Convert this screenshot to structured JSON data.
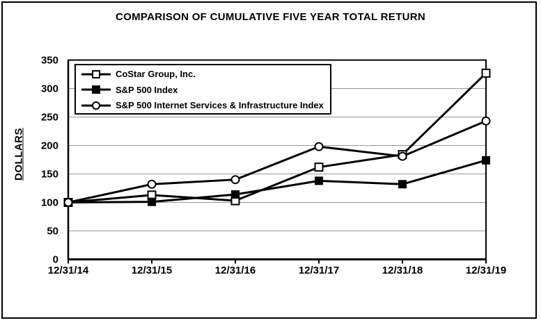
{
  "chart_data": {
    "type": "line",
    "title": "COMPARISON OF CUMULATIVE FIVE YEAR TOTAL RETURN",
    "ylabel": "DOLLARS",
    "xlabel": "",
    "x_tick_labels": [
      "12/31/14",
      "12/31/15",
      "12/31/16",
      "12/31/17",
      "12/31/18",
      "12/31/19"
    ],
    "y_ticks": [
      0,
      50,
      100,
      150,
      200,
      250,
      300,
      350
    ],
    "ylim": [
      0,
      350
    ],
    "grid": "horizontal-only",
    "legend_position": "inside-top-left",
    "series": [
      {
        "name": "CoStar Group, Inc.",
        "marker": "open-square",
        "color": "#000000",
        "values": [
          100,
          113,
          103,
          162,
          184,
          327
        ]
      },
      {
        "name": "S&P 500 Index",
        "marker": "filled-square",
        "color": "#000000",
        "values": [
          100,
          101,
          114,
          138,
          132,
          174
        ]
      },
      {
        "name": "S&P 500 Internet Services & Infrastructure Index",
        "marker": "open-circle",
        "color": "#000000",
        "values": [
          100,
          132,
          140,
          198,
          181,
          243
        ]
      }
    ]
  },
  "colors": {
    "line": "#000000",
    "grid": "#969696",
    "axis": "#000000",
    "background": "#ffffff",
    "frame": "#000000"
  }
}
